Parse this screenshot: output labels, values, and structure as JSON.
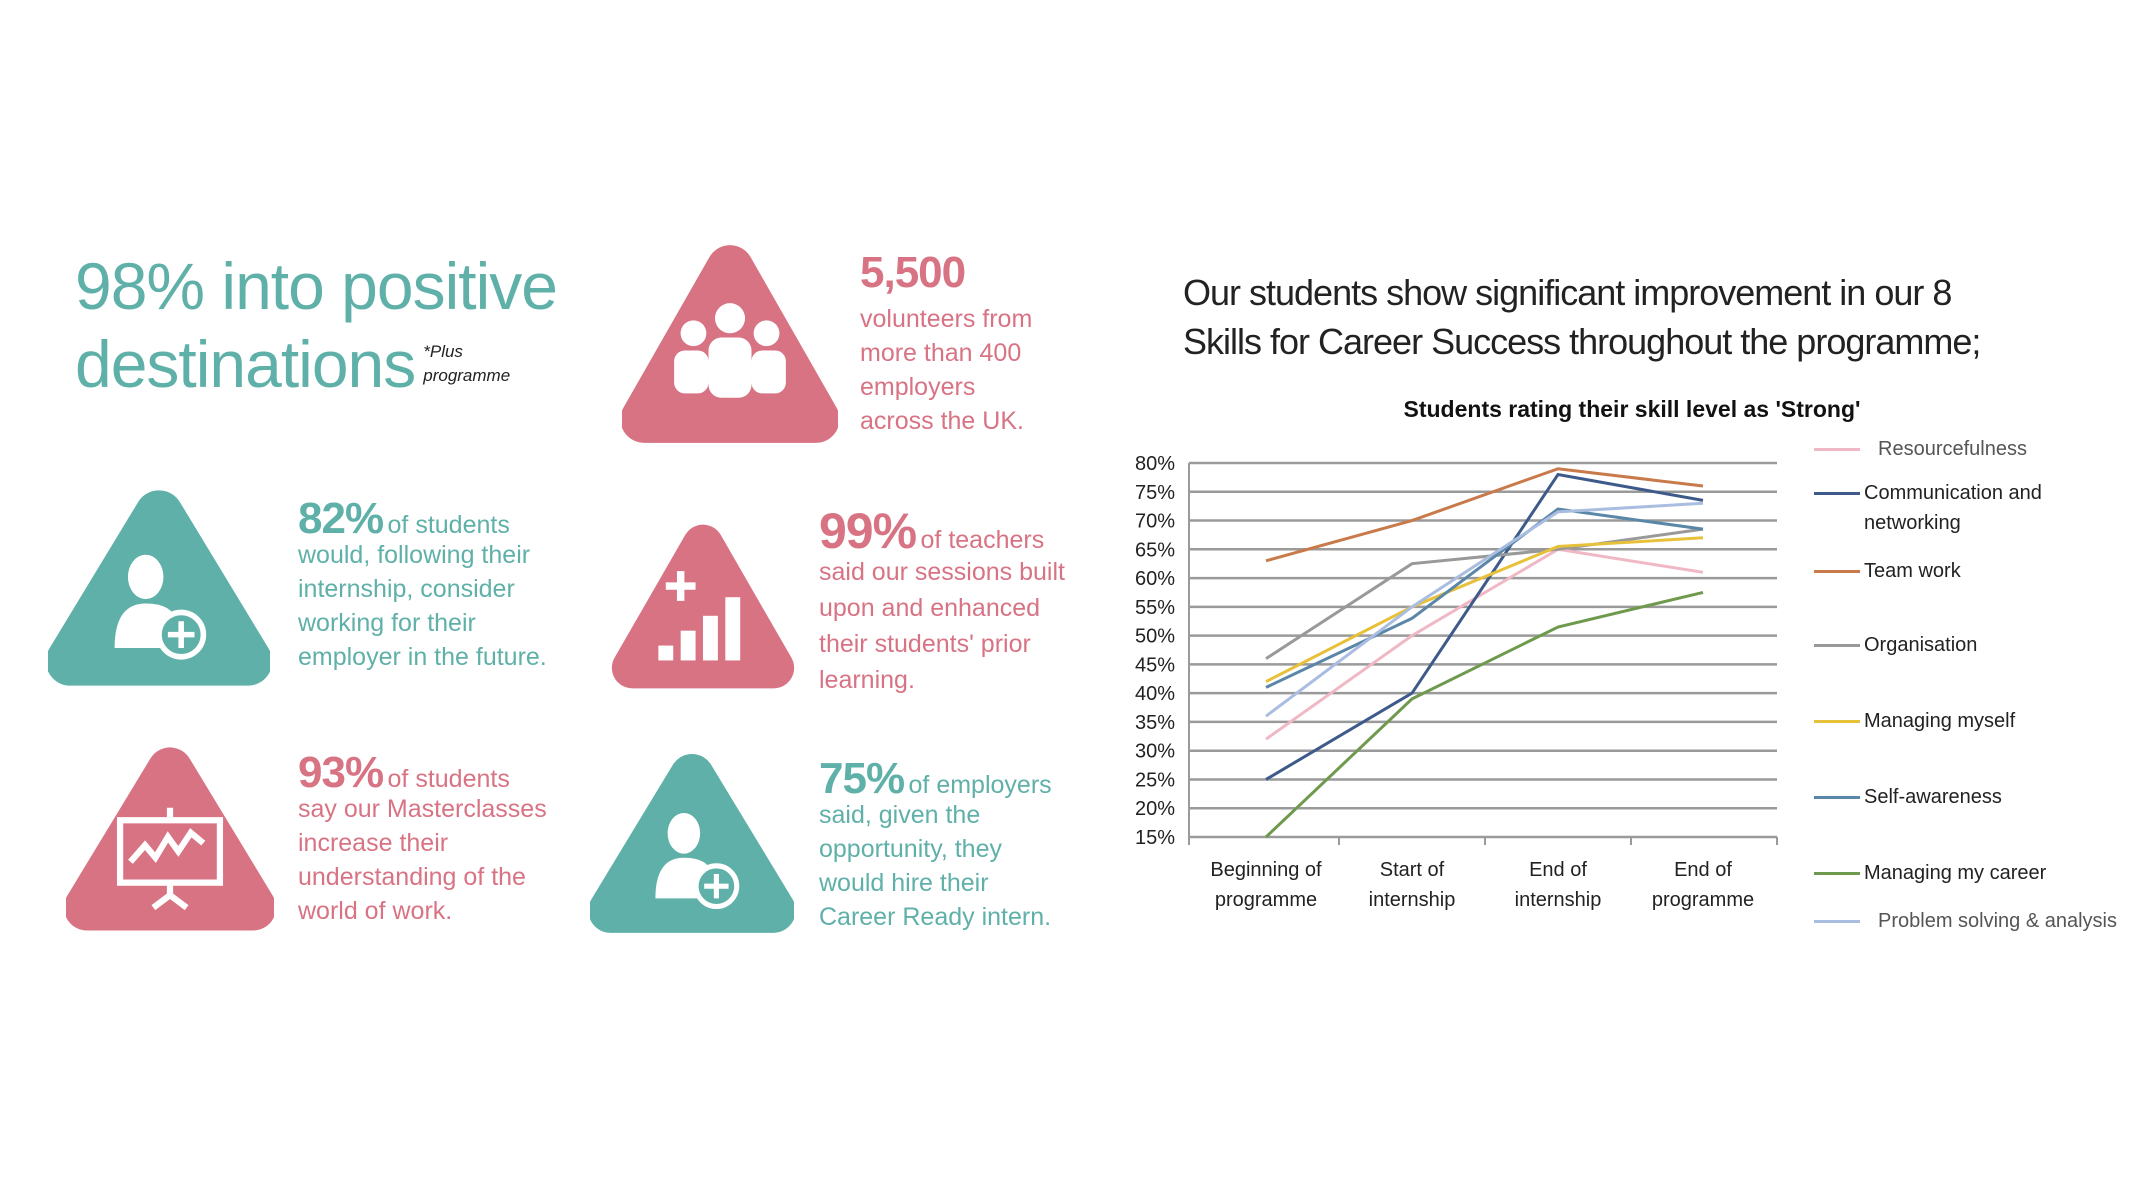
{
  "headline": {
    "line1": "98% into positive",
    "line2": "destinations",
    "note_line1": "*Plus",
    "note_line2": "programme"
  },
  "stats": [
    {
      "value": "5,500",
      "tail": "",
      "lines": [
        "volunteers from",
        "more than 400",
        "employers",
        "across the UK."
      ],
      "color": "#d87384",
      "icon": "people-group-icon"
    },
    {
      "value": "82%",
      "tail": "of students",
      "lines": [
        "would, following their",
        "internship, consider",
        "working for their",
        "employer in the future."
      ],
      "color": "#5fb0a8",
      "icon": "user-add-icon"
    },
    {
      "value": "99%",
      "tail": "of teachers",
      "lines": [
        "said our sessions built",
        "upon and enhanced",
        "their students' prior",
        "learning."
      ],
      "color": "#d87384",
      "icon": "bar-chart-plus-icon"
    },
    {
      "value": "93%",
      "tail": "of students",
      "lines": [
        "say our Masterclasses",
        "increase their",
        "understanding of the",
        "world of work."
      ],
      "color": "#d87384",
      "icon": "presentation-board-icon"
    },
    {
      "value": "75%",
      "tail": "of employers",
      "lines": [
        "said, given the",
        "opportunity, they",
        "would hire their",
        "Career Ready intern."
      ],
      "color": "#5fb0a8",
      "icon": "user-add-icon"
    }
  ],
  "right_heading": {
    "line1": "Our students show significant improvement in our 8",
    "line2": "Skills for Career Success throughout the programme;"
  },
  "chart_data": {
    "type": "line",
    "title": "Students rating their skill level as 'Strong'",
    "categories": [
      [
        "Beginning of",
        "programme"
      ],
      [
        "Start of",
        "internship"
      ],
      [
        "End of",
        "internship"
      ],
      [
        "End of",
        "programme"
      ]
    ],
    "y_ticks": [
      "80%",
      "75%",
      "70%",
      "65%",
      "60%",
      "55%",
      "50%",
      "45%",
      "40%",
      "35%",
      "30%",
      "25%",
      "20%",
      "15%"
    ],
    "ylim": [
      15,
      80
    ],
    "y_unit": "%",
    "grid": true,
    "legend_position": "right",
    "series": [
      {
        "name": "Resourcefulness",
        "color": "#f0b8c4",
        "values": [
          32,
          50,
          65,
          61
        ]
      },
      {
        "name": "Communication and networking",
        "color": "#3d5a8a",
        "values": [
          25,
          40,
          78,
          73.5
        ]
      },
      {
        "name": "Team work",
        "color": "#c87a4a",
        "values": [
          63,
          70,
          79,
          76
        ]
      },
      {
        "name": "Organisation",
        "color": "#999999",
        "values": [
          46,
          62.5,
          65,
          68.5
        ]
      },
      {
        "name": "Managing myself",
        "color": "#e8c13a",
        "values": [
          42,
          55,
          65.5,
          67
        ]
      },
      {
        "name": "Self-awareness",
        "color": "#5a86a8",
        "values": [
          41,
          53,
          72,
          68.5
        ]
      },
      {
        "name": "Managing my career",
        "color": "#6f9a4e",
        "values": [
          15,
          39,
          51.5,
          57.5
        ]
      },
      {
        "name": "Problem solving & analysis",
        "color": "#a9bde0",
        "values": [
          36,
          55,
          71.5,
          73
        ]
      }
    ]
  }
}
